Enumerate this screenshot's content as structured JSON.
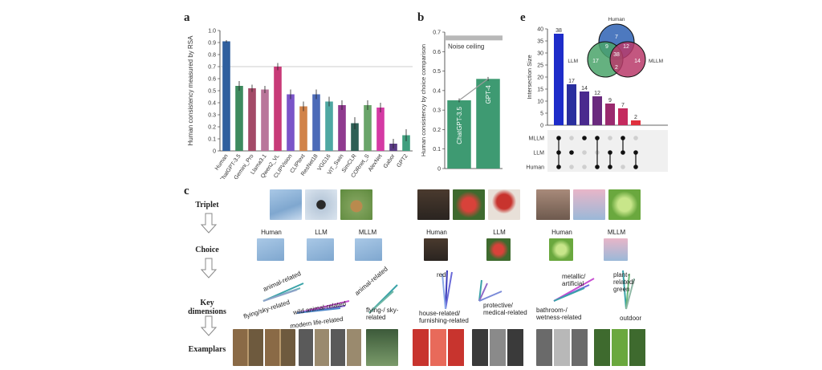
{
  "panel_a": {
    "letter": "a",
    "chart_data": {
      "type": "bar",
      "ylabel": "Human consistency measured by RSA",
      "ylim": [
        0,
        1.0
      ],
      "yticks": [
        "0",
        "0.1",
        "0.2",
        "0.3",
        "0.4",
        "0.5",
        "0.6",
        "0.7",
        "0.8",
        "0.9",
        "1.0"
      ],
      "reference_line": 0.7,
      "categories": [
        "Human",
        "ChatGPT-3.5",
        "Gemini_Pro",
        "Llama3.1",
        "Qwen2_VL",
        "CLIPVision",
        "CLIPtext",
        "ResNet18",
        "VGG16",
        "ViT_Swin",
        "SimCLR",
        "CORnet_S",
        "AlexNet",
        "Gabor",
        "GPT2"
      ],
      "values": [
        0.91,
        0.54,
        0.52,
        0.51,
        0.7,
        0.47,
        0.37,
        0.47,
        0.41,
        0.38,
        0.23,
        0.38,
        0.36,
        0.06,
        0.13
      ],
      "errors": [
        0.01,
        0.04,
        0.03,
        0.03,
        0.03,
        0.04,
        0.04,
        0.04,
        0.04,
        0.04,
        0.05,
        0.04,
        0.04,
        0.04,
        0.05
      ],
      "colors": [
        "#2f5f9e",
        "#3d8a5e",
        "#a34a67",
        "#b9769a",
        "#c83a78",
        "#7b55c8",
        "#d1834a",
        "#4c6bb8",
        "#4ea7a2",
        "#8f3a8f",
        "#2e5f55",
        "#6aa56a",
        "#d43aa4",
        "#5a3a84",
        "#3f9e7e"
      ]
    }
  },
  "panel_b": {
    "letter": "b",
    "chart_data": {
      "type": "bar",
      "ylabel": "Human consistency by choice comparison",
      "ylim": [
        0,
        0.7
      ],
      "yticks": [
        "0",
        "0.1",
        "0.2",
        "0.3",
        "0.4",
        "0.5",
        "0.6",
        "0.7"
      ],
      "noise_ceiling": 0.67,
      "noise_ceiling_label": "Noise ceiling",
      "categories": [
        "ChatGPT-3.5",
        "GPT-4"
      ],
      "values": [
        0.35,
        0.46
      ],
      "errors": [
        0.01,
        0.01
      ],
      "color": "#3e9a72"
    }
  },
  "panel_e": {
    "letter": "e",
    "chart_data": {
      "type": "bar",
      "ylabel": "Intersection Size",
      "ylim": [
        0,
        40
      ],
      "yticks": [
        "0",
        "5",
        "10",
        "15",
        "20",
        "25",
        "30",
        "35",
        "40"
      ],
      "values": [
        38,
        17,
        14,
        12,
        9,
        7,
        2
      ],
      "colors": [
        "#1d2cc9",
        "#2a2f9e",
        "#4a2a8e",
        "#6a2a7e",
        "#9a2a6e",
        "#c42a5e",
        "#e0303e"
      ],
      "sets": [
        "MLLM",
        "LLM",
        "Human"
      ],
      "venn": {
        "labels": [
          "Human",
          "LLM",
          "MLLM"
        ],
        "regions": [
          "7",
          "12",
          "17",
          "9",
          "38",
          "14",
          "2"
        ]
      }
    }
  },
  "panel_c": {
    "letter": "c",
    "row_labels": [
      "Triplet",
      "Choice",
      "Key dimensions",
      "Examplars"
    ],
    "choice_labels_1": [
      "Human",
      "LLM",
      "MLLM"
    ],
    "choice_labels_2": [
      "Human",
      "LLM"
    ],
    "choice_labels_3": [
      "Human",
      "MLLM"
    ],
    "dimensions": [
      "animal-related",
      "flying/sky-related",
      "wild animal-related",
      "modern life-related",
      "animal-related",
      "flying-/ sky-related",
      "red",
      "house-related/ furnishing-related",
      "protective/ medical-related",
      "metallic/ artificial",
      "bathroom-/ wetness-related",
      "plant-related/ green",
      "outdoor"
    ]
  }
}
